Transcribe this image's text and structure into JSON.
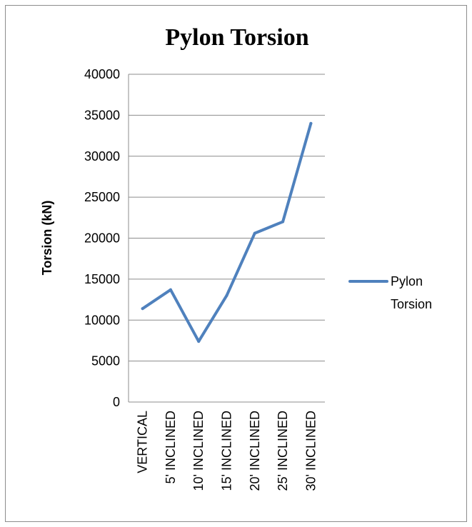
{
  "chart_data": {
    "type": "line",
    "title": "Pylon Torsion",
    "xlabel": "",
    "ylabel": "Torsion (kN)",
    "categories": [
      "VERTICAL",
      "5' INCLINED",
      "10' INCLINED",
      "15' INCLINED",
      "20' INCLINED",
      "25' INCLINED",
      "30' INCLINED"
    ],
    "yticks": [
      "0",
      "5000",
      "10000",
      "15000",
      "20000",
      "25000",
      "30000",
      "35000",
      "40000"
    ],
    "ylim": [
      0,
      40000
    ],
    "grid": true,
    "legend_position": "right",
    "legend_lines": [
      "Pylon",
      "Torsion"
    ],
    "series": [
      {
        "name": "Pylon Torsion",
        "color": "#4f81bd",
        "values": [
          11400,
          13700,
          7400,
          13000,
          20600,
          22000,
          34000
        ]
      }
    ]
  }
}
